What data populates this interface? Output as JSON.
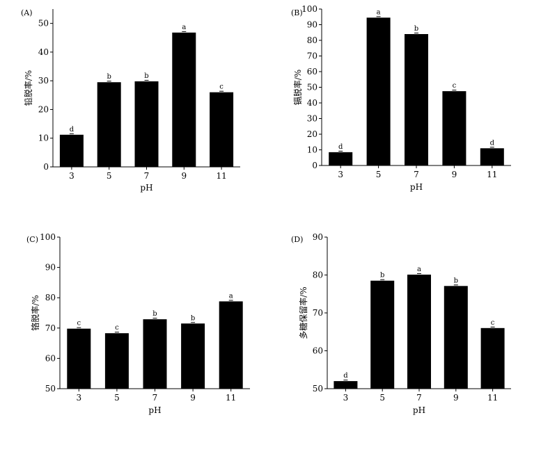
{
  "chart_data": [
    {
      "type": "bar",
      "panel_label": "(A)",
      "categories": [
        "3",
        "5",
        "7",
        "9",
        "11"
      ],
      "values": [
        11.2,
        29.5,
        29.8,
        46.8,
        26.0
      ],
      "letters": [
        "d",
        "b",
        "b",
        "a",
        "c"
      ],
      "xlabel": "pH",
      "ylabel": "铅脱率/%",
      "ylim": [
        0,
        55
      ],
      "yticks": [
        0,
        10,
        20,
        30,
        40,
        50
      ]
    },
    {
      "type": "bar",
      "panel_label": "(B)",
      "categories": [
        "3",
        "5",
        "7",
        "9",
        "11"
      ],
      "values": [
        8.5,
        94.5,
        84.0,
        47.5,
        11.0
      ],
      "letters": [
        "d",
        "a",
        "b",
        "c",
        "d"
      ],
      "xlabel": "pH",
      "ylabel": "镉脱率/%",
      "ylim": [
        0,
        100
      ],
      "yticks": [
        0,
        10,
        20,
        30,
        40,
        50,
        60,
        70,
        80,
        90,
        100
      ]
    },
    {
      "type": "bar",
      "panel_label": "(C)",
      "categories": [
        "3",
        "5",
        "7",
        "9",
        "11"
      ],
      "values": [
        69.8,
        68.3,
        72.9,
        71.5,
        78.8
      ],
      "letters": [
        "c",
        "c",
        "b",
        "b",
        "a"
      ],
      "xlabel": "pH",
      "ylabel": "铬脱率/%",
      "ylim": [
        50,
        100
      ],
      "yticks": [
        50,
        60,
        70,
        80,
        90,
        100
      ]
    },
    {
      "type": "bar",
      "panel_label": "(D)",
      "categories": [
        "3",
        "5",
        "7",
        "9",
        "11"
      ],
      "values": [
        52.0,
        78.5,
        80.1,
        77.1,
        66.0
      ],
      "letters": [
        "d",
        "b",
        "a",
        "b",
        "c"
      ],
      "xlabel": "pH",
      "ylabel": "多糖保留率/%",
      "ylim": [
        50,
        90
      ],
      "yticks": [
        50,
        60,
        70,
        80,
        90
      ]
    }
  ]
}
